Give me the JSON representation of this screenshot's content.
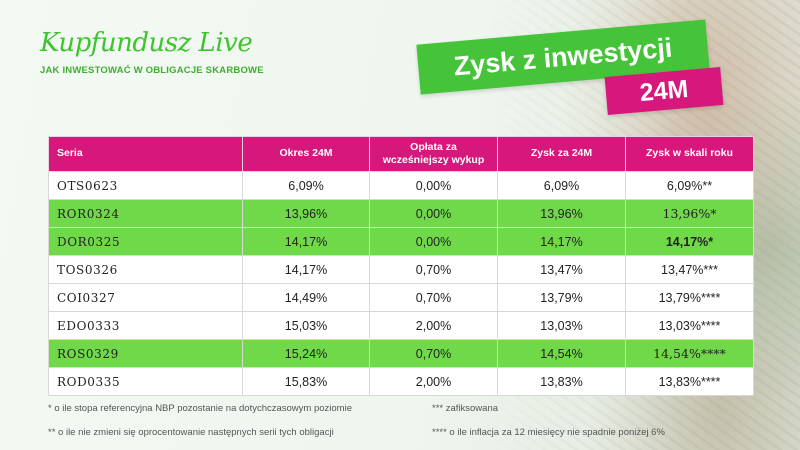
{
  "brand": {
    "logo_text": "Kupfundusz Live",
    "tagline": "JAK INWESTOWAĆ W OBLIGACJE SKARBOWE"
  },
  "banner": {
    "title": "Zysk z inwestycji",
    "subtitle": "24M"
  },
  "table": {
    "headers": [
      "Seria",
      "Okres 24M",
      "Opłata za wcześniejszy wykup",
      "Zysk za 24M",
      "Zysk w skali roku"
    ],
    "rows": [
      {
        "series": "OTS0623",
        "period": "6,09%",
        "fee": "0,00%",
        "profit": "6,09%",
        "annual": "6,09%**",
        "highlight": false
      },
      {
        "series": "ROR0324",
        "period": "13,96%",
        "fee": "0,00%",
        "profit": "13,96%",
        "annual": "13,96%*",
        "highlight": true
      },
      {
        "series": "DOR0325",
        "period": "14,17%",
        "fee": "0,00%",
        "profit": "14,17%",
        "annual": "14,17%*",
        "highlight": true
      },
      {
        "series": "TOS0326",
        "period": "14,17%",
        "fee": "0,70%",
        "profit": "13,47%",
        "annual": "13,47%***",
        "highlight": false
      },
      {
        "series": "COI0327",
        "period": "14,49%",
        "fee": "0,70%",
        "profit": "13,79%",
        "annual": "13,79%****",
        "highlight": false
      },
      {
        "series": "EDO0333",
        "period": "15,03%",
        "fee": "2,00%",
        "profit": "13,03%",
        "annual": "13,03%****",
        "highlight": false
      },
      {
        "series": "ROS0329",
        "period": "15,24%",
        "fee": "0,70%",
        "profit": "14,54%",
        "annual": "14,54%****",
        "highlight": true
      },
      {
        "series": "ROD0335",
        "period": "15,83%",
        "fee": "2,00%",
        "profit": "13,83%",
        "annual": "13,83%****",
        "highlight": false
      }
    ]
  },
  "footnotes": {
    "n1": "* o ile stopa referencyjna NBP pozostanie na dotychczasowym poziomie",
    "n2": "** o ile nie zmieni się oprocentowanie następnych serii tych obligacji",
    "n3": "*** zafiksowana",
    "n4": "**** o ile inflacja za 12 miesięcy nie spadnie poniżej 6%"
  },
  "colors": {
    "brand_green": "#45c43a",
    "row_highlight": "#6fd94a",
    "header_pink": "#d6187d"
  }
}
